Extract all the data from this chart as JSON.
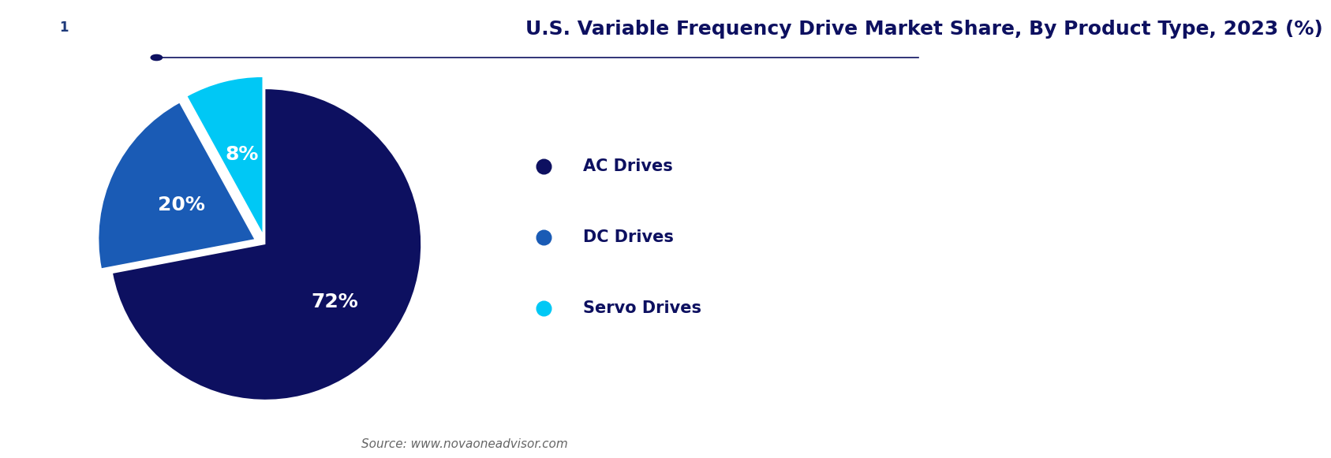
{
  "title": "U.S. Variable Frequency Drive Market Share, By Product Type, 2023 (%)",
  "slices": [
    72,
    20,
    8
  ],
  "labels": [
    "AC Drives",
    "DC Drives",
    "Servo Drives"
  ],
  "pct_labels": [
    "72%",
    "20%",
    "8%"
  ],
  "colors": [
    "#0d1060",
    "#1a5bb5",
    "#00c8f5"
  ],
  "explode": [
    0,
    0.08,
    0.08
  ],
  "startangle": 90,
  "background_color": "#ffffff",
  "title_color": "#0d1060",
  "title_fontsize": 18,
  "legend_fontsize": 15,
  "pct_fontsize": 18,
  "source_text": "Source: www.novaoneadvisor.com",
  "source_fontsize": 11,
  "separator_color": "#0d1060",
  "legend_text_color": "#0d1060",
  "logo_dark_blue": "#1e3a7a",
  "logo_mid_blue": "#2e6ab5",
  "logo_light_blue": "#4a90d9"
}
